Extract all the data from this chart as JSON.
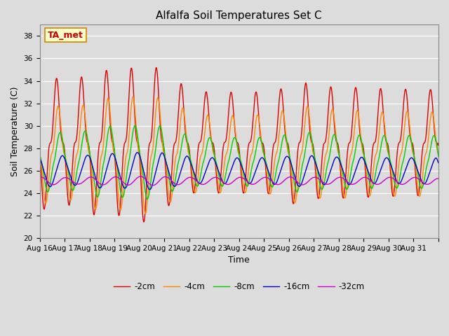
{
  "title": "Alfalfa Soil Temperatures Set C",
  "xlabel": "Time",
  "ylabel": "Soil Temperature (C)",
  "ylim": [
    20,
    39
  ],
  "yticks": [
    20,
    22,
    24,
    26,
    28,
    30,
    32,
    34,
    36,
    38
  ],
  "x_labels": [
    "Aug 16",
    "Aug 17",
    "Aug 18",
    "Aug 19",
    "Aug 20",
    "Aug 21",
    "Aug 22",
    "Aug 23",
    "Aug 24",
    "Aug 25",
    "Aug 26",
    "Aug 27",
    "Aug 28",
    "Aug 29",
    "Aug 30",
    "Aug 31"
  ],
  "line_colors": [
    "#dd0000",
    "#ff8800",
    "#00cc00",
    "#0000cc",
    "#cc00cc"
  ],
  "line_labels": [
    "-2cm",
    "-4cm",
    "-8cm",
    "-16cm",
    "-32cm"
  ],
  "background_color": "#dcdcdc",
  "plot_bg_color": "#dcdcdc",
  "grid_color": "#ffffff",
  "annotation_text": "TA_met",
  "annotation_bg": "#ffffcc",
  "annotation_border": "#cc8800",
  "title_fontsize": 11,
  "axis_fontsize": 9,
  "tick_fontsize": 7.5,
  "legend_fontsize": 8.5
}
